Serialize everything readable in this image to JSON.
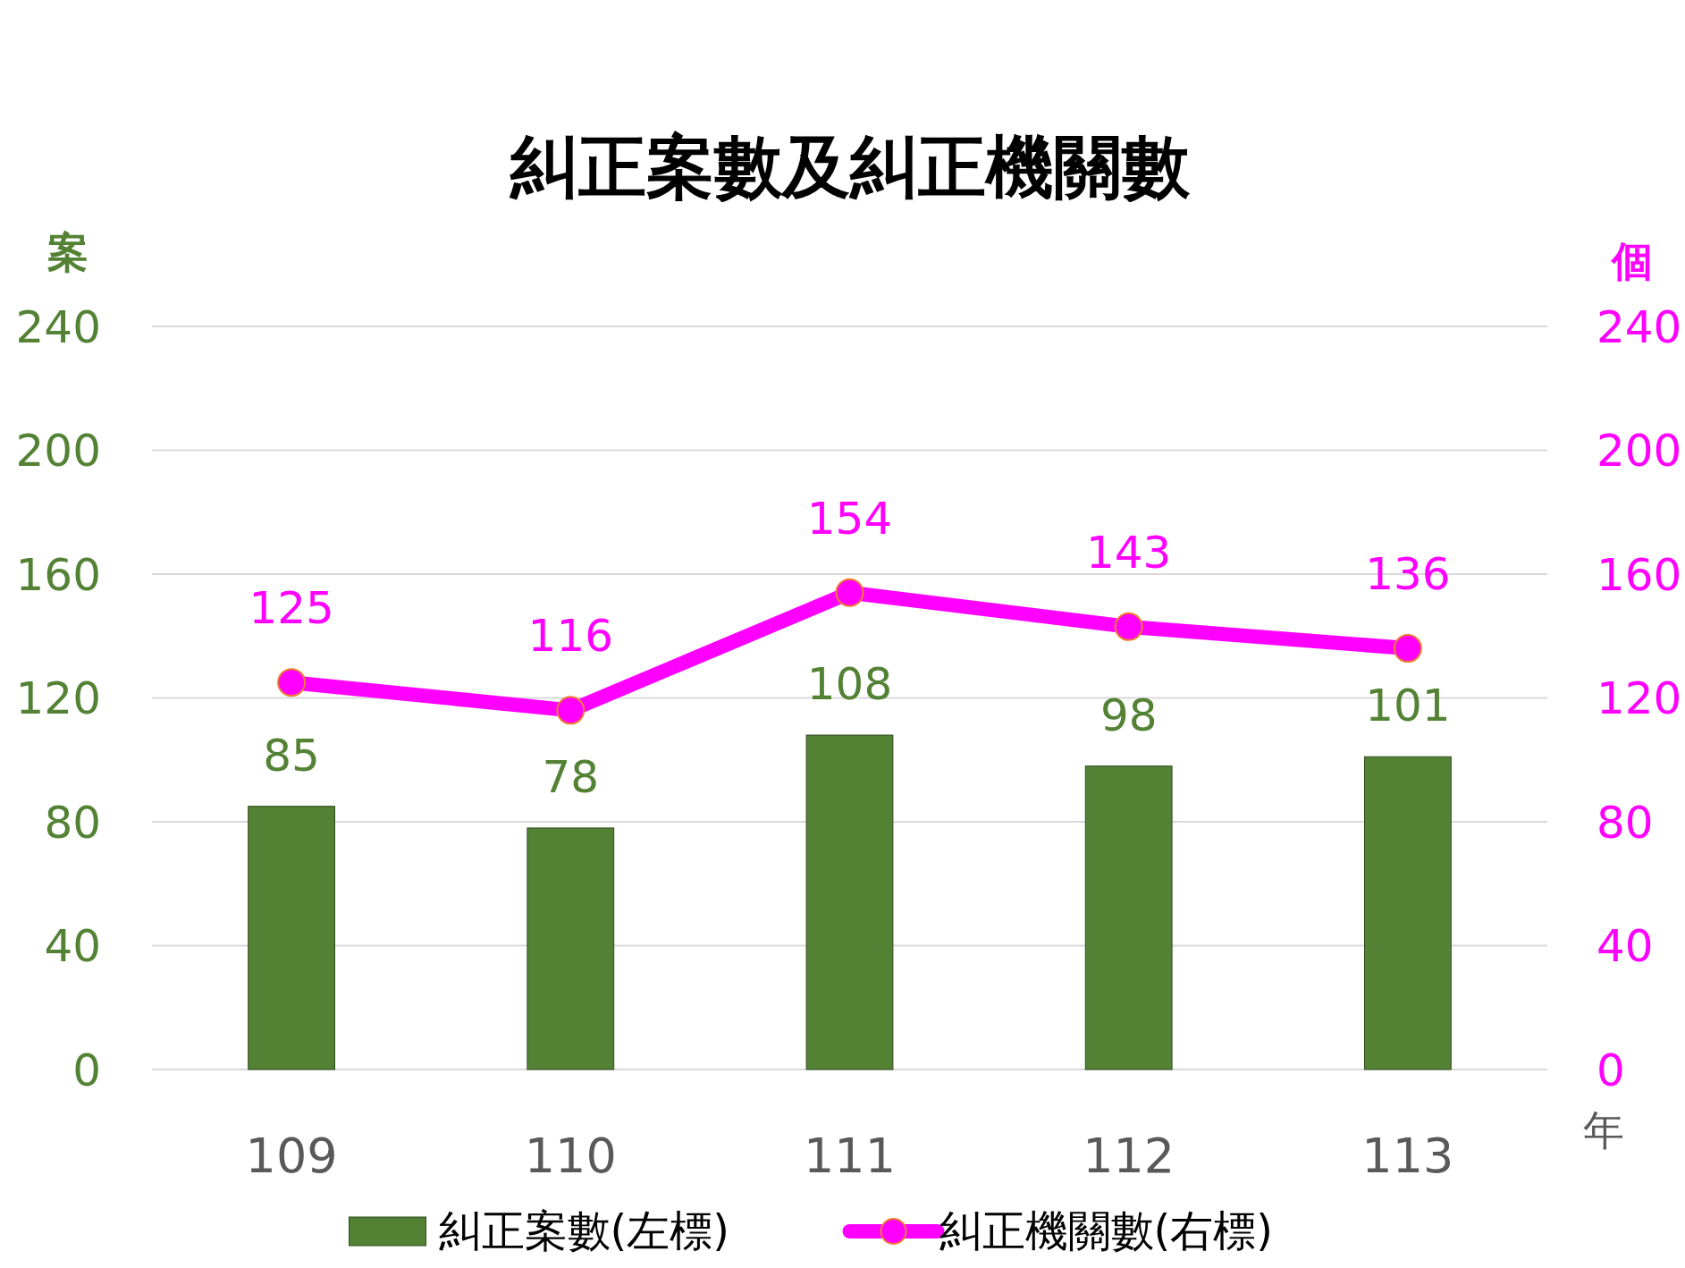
{
  "chart_data": {
    "type": "bar",
    "title": "糾正案數及糾正機關數",
    "xlabel": "年",
    "ylabel": "案",
    "y2label": "個",
    "categories": [
      "109",
      "110",
      "111",
      "112",
      "113"
    ],
    "series": [
      {
        "name": "糾正案數(左標)",
        "color": "#548235",
        "values": [
          85,
          78,
          108,
          98,
          101
        ]
      },
      {
        "name": "糾正機關數(右標)",
        "type": "line",
        "axis": "y2",
        "color": "#ff00ff",
        "values": [
          125,
          116,
          154,
          143,
          136
        ]
      }
    ],
    "ylim": [
      0,
      240
    ],
    "yticks": [
      0,
      40,
      80,
      120,
      160,
      200,
      240
    ],
    "y2lim": [
      0,
      240
    ],
    "y2ticks": [
      0,
      40,
      80,
      120,
      160,
      200,
      240
    ],
    "grid": "y",
    "legend": "bottom",
    "marker": "circle",
    "data_labels": true
  }
}
